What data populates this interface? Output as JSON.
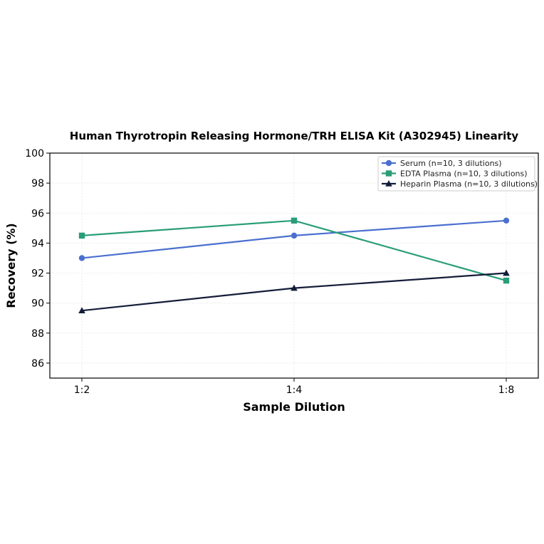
{
  "chart_data": {
    "type": "line",
    "title": "Human Thyrotropin Releasing Hormone/TRH ELISA Kit (A302945) Linearity",
    "xlabel": "Sample Dilution",
    "ylabel": "Recovery (%)",
    "categories": [
      "1:2",
      "1:4",
      "1:8"
    ],
    "ylim": [
      85,
      100
    ],
    "yticks": [
      86,
      88,
      90,
      92,
      94,
      96,
      98,
      100
    ],
    "grid": true,
    "legend_position": "top-right",
    "series": [
      {
        "name": "Serum (n=10, 3 dilutions)",
        "values": [
          93.0,
          94.5,
          95.5
        ],
        "color": "#4a6fcf",
        "marker": "circle"
      },
      {
        "name": "EDTA Plasma (n=10, 3 dilutions)",
        "values": [
          94.5,
          95.5,
          91.5
        ],
        "color": "#2a9d78",
        "marker": "square"
      },
      {
        "name": "Heparin Plasma (n=10, 3 dilutions)",
        "values": [
          89.5,
          91.0,
          92.0
        ],
        "color": "#141c3a",
        "marker": "triangle"
      }
    ]
  }
}
